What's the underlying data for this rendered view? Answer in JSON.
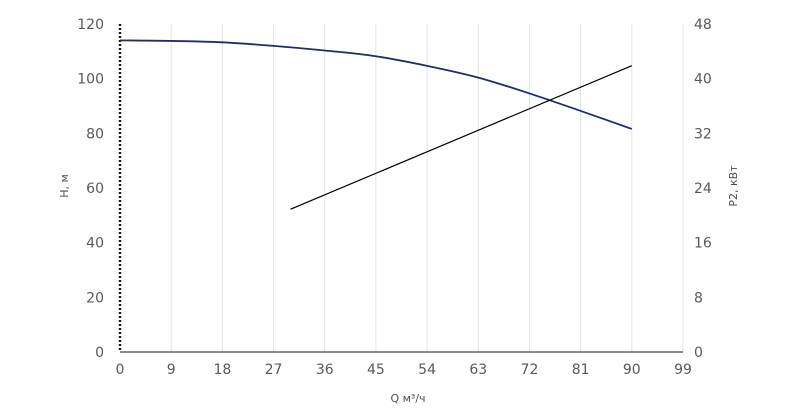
{
  "chart_data": {
    "type": "line",
    "xlabel": "Q м³/ч",
    "ylabel": "H, м",
    "y2label": "P2, кВт",
    "xlim": [
      0,
      99
    ],
    "ylim": [
      0,
      120
    ],
    "y2lim": [
      0,
      48
    ],
    "x_ticks": [
      "0",
      "9",
      "18",
      "27",
      "36",
      "45",
      "54",
      "63",
      "72",
      "81",
      "90",
      "99"
    ],
    "y_ticks": [
      "0",
      "20",
      "40",
      "60",
      "80",
      "100",
      "120"
    ],
    "y2_ticks": [
      "0",
      "8",
      "16",
      "24",
      "32",
      "40",
      "48"
    ],
    "grid": "vertical",
    "series": [
      {
        "axis": "left",
        "color": "#1f2d6b",
        "x": [
          0,
          9,
          18,
          27,
          36,
          45,
          54,
          63,
          72,
          81,
          90
        ],
        "y": [
          114.0,
          113.8,
          113.3,
          112.0,
          110.3,
          108.2,
          104.7,
          100.4,
          94.6,
          88.2,
          81.6
        ]
      },
      {
        "axis": "right",
        "color": "#000000",
        "x": [
          30,
          90
        ],
        "y": [
          20.9,
          41.9
        ]
      }
    ]
  },
  "colors": {
    "grid": "#dfe3ea",
    "axis": "#1a1a1a",
    "tick_text": "#555a60"
  }
}
